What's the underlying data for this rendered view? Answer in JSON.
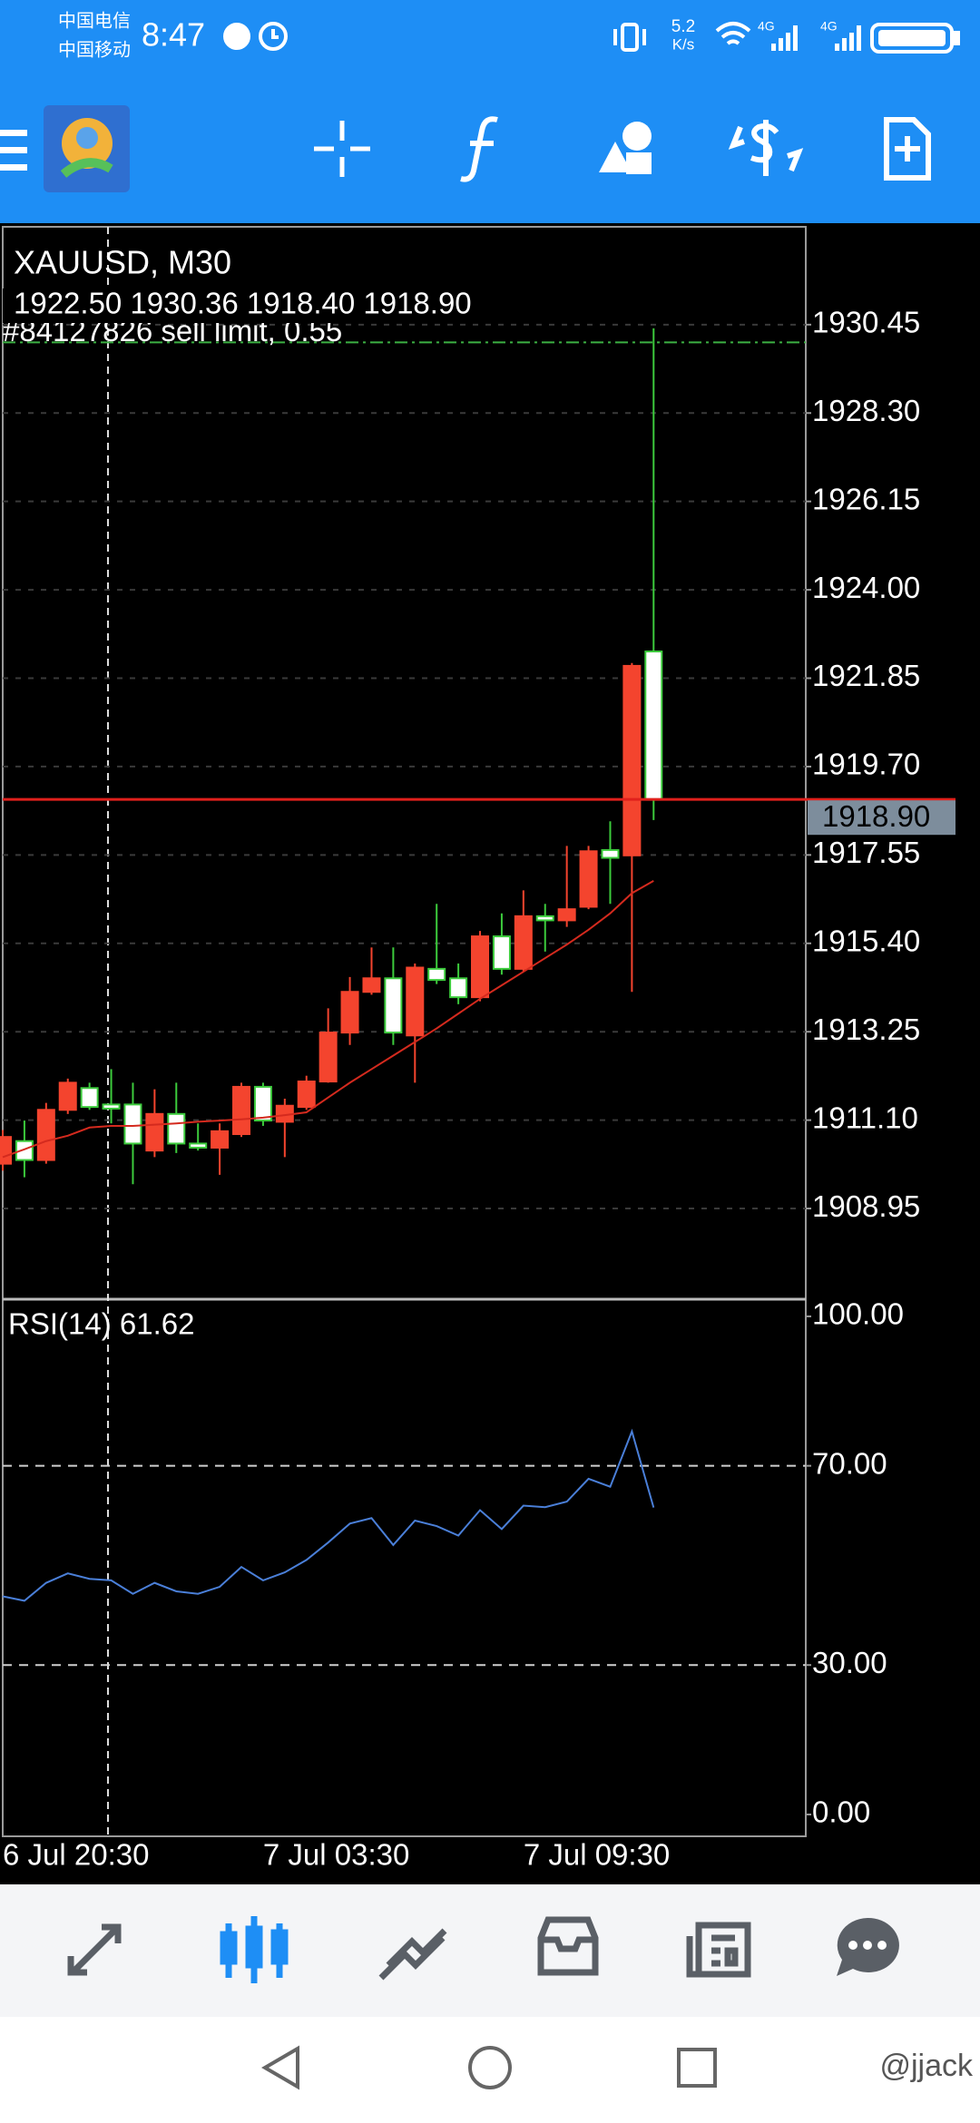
{
  "status_bar": {
    "carrier_1": "中国电信",
    "carrier_2": "中国移动",
    "time": "8:47",
    "net_speed": "5.2",
    "net_speed_unit": "K/s",
    "signal_1": "4G",
    "signal_2": "4G"
  },
  "chart_data": [
    {
      "type": "candlestick",
      "title": "XAUUSD, M30",
      "subtitle": "1922.50 1930.36 1918.40 1918.90",
      "categories": [
        "6 Jul 20:30",
        null,
        null,
        null,
        null,
        null,
        null,
        null,
        null,
        null,
        null,
        null,
        "7 Jul 03:30",
        null,
        null,
        null,
        null,
        null,
        null,
        null,
        null,
        null,
        null,
        null,
        "7 Jul 09:30",
        null,
        null,
        null,
        null,
        null,
        null
      ],
      "open": [
        1910.04,
        1910.59,
        1910.13,
        1911.35,
        1911.88,
        1911.48,
        1911.48,
        1910.36,
        1911.25,
        1910.53,
        1910.43,
        1910.76,
        1911.91,
        1911.06,
        1911.42,
        1912.04,
        1913.23,
        1914.22,
        1914.55,
        1913.16,
        1914.78,
        1914.55,
        1914.09,
        1915.57,
        1914.78,
        1916.06,
        1915.96,
        1916.29,
        1917.67,
        1917.54,
        1922.5
      ],
      "high": [
        1910.86,
        1911.09,
        1911.52,
        1912.11,
        1912.01,
        1912.34,
        1912.01,
        1911.85,
        1912.01,
        1911.02,
        1911.02,
        1912.01,
        1912.01,
        1911.62,
        1912.18,
        1913.82,
        1914.58,
        1915.3,
        1915.3,
        1914.91,
        1916.36,
        1914.91,
        1915.7,
        1916.13,
        1916.69,
        1916.36,
        1917.77,
        1917.77,
        1918.37,
        1922.22,
        1930.36
      ],
      "low": [
        1909.87,
        1909.71,
        1910.04,
        1911.25,
        1911.35,
        1911.02,
        1909.54,
        1910.2,
        1910.3,
        1910.36,
        1909.77,
        1910.69,
        1910.96,
        1910.2,
        1911.35,
        1912.01,
        1912.93,
        1914.15,
        1912.93,
        1912.01,
        1914.41,
        1913.92,
        1913.99,
        1914.64,
        1914.71,
        1915.2,
        1915.8,
        1916.23,
        1916.36,
        1914.22,
        1918.4
      ],
      "close": [
        1910.69,
        1910.13,
        1911.35,
        1912.01,
        1911.42,
        1911.38,
        1910.53,
        1911.25,
        1910.53,
        1910.43,
        1910.83,
        1911.91,
        1911.09,
        1911.45,
        1912.04,
        1913.23,
        1914.22,
        1914.55,
        1913.23,
        1914.81,
        1914.51,
        1914.09,
        1915.57,
        1914.78,
        1916.06,
        1915.96,
        1916.23,
        1917.64,
        1917.48,
        1922.15,
        1918.9
      ],
      "up_color": "#f4442e",
      "down_color": "#3ccb3c",
      "overlay": {
        "color": "#d42a1e",
        "values": [
          1910.2,
          1910.39,
          1910.59,
          1910.72,
          1910.92,
          1910.96,
          1910.96,
          1910.99,
          1911.02,
          1911.06,
          1911.09,
          1911.12,
          1911.16,
          1911.22,
          1911.29,
          1911.65,
          1912.01,
          1912.34,
          1912.67,
          1913.0,
          1913.33,
          1913.69,
          1914.05,
          1914.38,
          1914.71,
          1915.04,
          1915.37,
          1915.73,
          1916.13,
          1916.62,
          1916.92
        ]
      },
      "orders": [
        {
          "label": "#84127826 sell limit, 0.55",
          "value": 1930.02,
          "color": "#3cb043"
        }
      ],
      "bid": {
        "value": 1918.9,
        "label": "1918.90",
        "color": "#e0201c"
      },
      "ylim": [
        1906.81,
        1932.83
      ],
      "yticks": [
        1930.45,
        {
          "value": 1928.3,
          "label": "1928.30"
        },
        1926.15,
        {
          "value": 1924,
          "label": "1924.00"
        },
        1921.85,
        {
          "value": 1919.7,
          "label": "1919.70"
        },
        1917.55,
        {
          "value": 1915.4,
          "label": "1915.40"
        },
        1913.25,
        {
          "value": 1911.1,
          "label": "1911.10"
        },
        1908.95
      ],
      "grid": true
    },
    {
      "type": "line",
      "title": "RSI(14) 61.62",
      "color": "#4a7fd8",
      "values": [
        43.8,
        42.9,
        46.5,
        48.4,
        47.3,
        47.0,
        44.3,
        46.5,
        44.8,
        44.3,
        45.7,
        49.7,
        47.0,
        48.6,
        51.1,
        54.6,
        58.4,
        59.5,
        54.1,
        59.0,
        57.9,
        56.0,
        61.1,
        57.3,
        62.0,
        61.7,
        62.8,
        67.4,
        65.8,
        76.9,
        61.62
      ],
      "ylim": [
        -4.2,
        102.9
      ],
      "yticks": [
        {
          "value": 100,
          "label": "100.00"
        },
        {
          "value": 70,
          "label": "70.00"
        },
        {
          "value": 30,
          "label": "30.00"
        },
        {
          "value": 0,
          "label": "0.00"
        }
      ],
      "levels": [
        70,
        30
      ],
      "grid": false
    }
  ],
  "watermark": "@jjack"
}
